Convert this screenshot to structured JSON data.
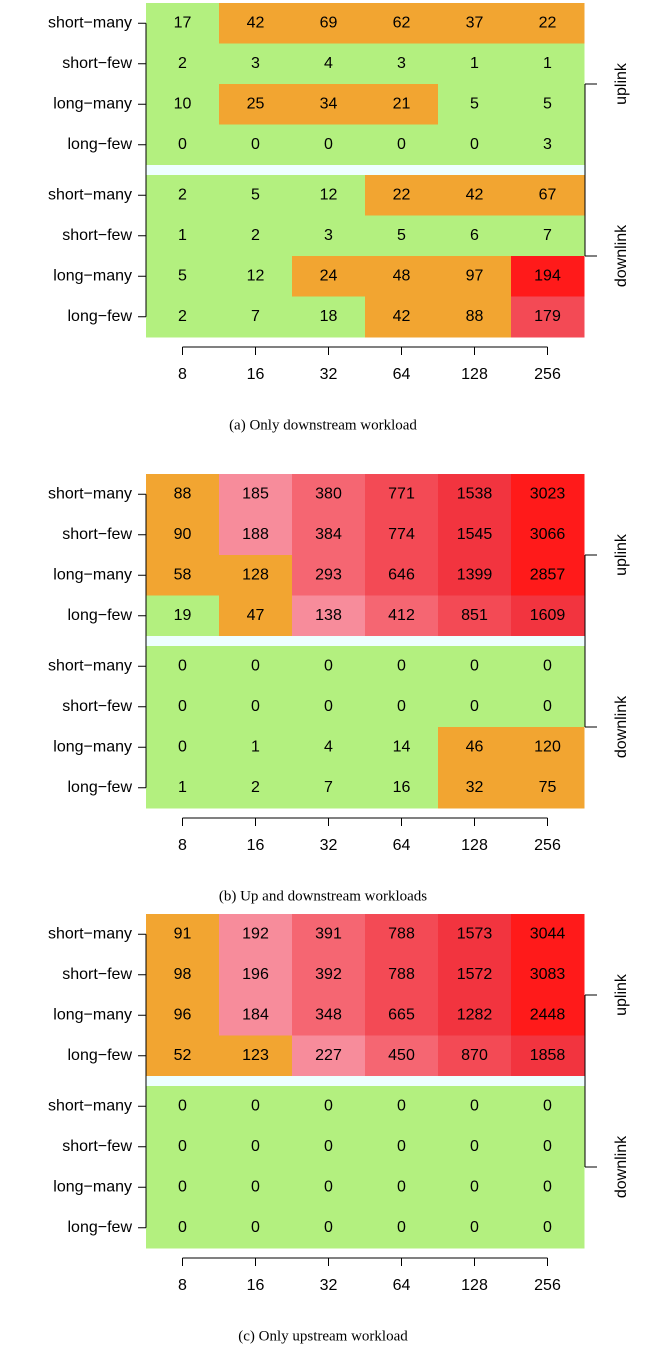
{
  "chart_data": [
    {
      "type": "heatmap",
      "caption": "(a) Only downstream workload",
      "x_categories": [
        8,
        16,
        32,
        64,
        128,
        256
      ],
      "y_categories": [
        "short−many",
        "short−few",
        "long−many",
        "long−few",
        "short−many",
        "short−few",
        "long−many",
        "long−few"
      ],
      "groups": [
        "uplink",
        "downlink"
      ],
      "values": [
        [
          17,
          42,
          69,
          62,
          37,
          22
        ],
        [
          2,
          3,
          4,
          3,
          1,
          1
        ],
        [
          10,
          25,
          34,
          21,
          5,
          5
        ],
        [
          0,
          0,
          0,
          0,
          0,
          3
        ],
        [
          2,
          5,
          12,
          22,
          42,
          67
        ],
        [
          1,
          2,
          3,
          5,
          6,
          7
        ],
        [
          5,
          12,
          24,
          48,
          97,
          194
        ],
        [
          2,
          7,
          18,
          42,
          88,
          179
        ]
      ],
      "colors": [
        [
          "#b3f07f",
          "#f2a531",
          "#f2a531",
          "#f2a531",
          "#f2a531",
          "#f2a531"
        ],
        [
          "#b3f07f",
          "#b3f07f",
          "#b3f07f",
          "#b3f07f",
          "#b3f07f",
          "#b3f07f"
        ],
        [
          "#b3f07f",
          "#f2a531",
          "#f2a531",
          "#f2a531",
          "#b3f07f",
          "#b3f07f"
        ],
        [
          "#b3f07f",
          "#b3f07f",
          "#b3f07f",
          "#b3f07f",
          "#b3f07f",
          "#b3f07f"
        ],
        [
          "#b3f07f",
          "#b3f07f",
          "#b3f07f",
          "#f2a531",
          "#f2a531",
          "#f2a531"
        ],
        [
          "#b3f07f",
          "#b3f07f",
          "#b3f07f",
          "#b3f07f",
          "#b3f07f",
          "#b3f07f"
        ],
        [
          "#b3f07f",
          "#b3f07f",
          "#f2a531",
          "#f2a531",
          "#f2a531",
          "#ff1a1a"
        ],
        [
          "#b3f07f",
          "#b3f07f",
          "#b3f07f",
          "#f2a531",
          "#f2a531",
          "#f34a55"
        ]
      ]
    },
    {
      "type": "heatmap",
      "caption": "(b) Up and downstream workloads",
      "x_categories": [
        8,
        16,
        32,
        64,
        128,
        256
      ],
      "y_categories": [
        "short−many",
        "short−few",
        "long−many",
        "long−few",
        "short−many",
        "short−few",
        "long−many",
        "long−few"
      ],
      "groups": [
        "uplink",
        "downlink"
      ],
      "values": [
        [
          88,
          185,
          380,
          771,
          1538,
          3023
        ],
        [
          90,
          188,
          384,
          774,
          1545,
          3066
        ],
        [
          58,
          128,
          293,
          646,
          1399,
          2857
        ],
        [
          19,
          47,
          138,
          412,
          851,
          1609
        ],
        [
          0,
          0,
          0,
          0,
          0,
          0
        ],
        [
          0,
          0,
          0,
          0,
          0,
          0
        ],
        [
          0,
          1,
          4,
          14,
          46,
          120
        ],
        [
          1,
          2,
          7,
          16,
          32,
          75
        ]
      ],
      "colors": [
        [
          "#f2a531",
          "#f78c9b",
          "#f56672",
          "#f34a55",
          "#f2343f",
          "#ff1a1a"
        ],
        [
          "#f2a531",
          "#f78c9b",
          "#f56672",
          "#f34a55",
          "#f2343f",
          "#ff1a1a"
        ],
        [
          "#f2a531",
          "#f2a531",
          "#f56672",
          "#f34a55",
          "#f2343f",
          "#ff1a1a"
        ],
        [
          "#b3f07f",
          "#f2a531",
          "#f78c9b",
          "#f56672",
          "#f34a55",
          "#f2343f"
        ],
        [
          "#b3f07f",
          "#b3f07f",
          "#b3f07f",
          "#b3f07f",
          "#b3f07f",
          "#b3f07f"
        ],
        [
          "#b3f07f",
          "#b3f07f",
          "#b3f07f",
          "#b3f07f",
          "#b3f07f",
          "#b3f07f"
        ],
        [
          "#b3f07f",
          "#b3f07f",
          "#b3f07f",
          "#b3f07f",
          "#f2a531",
          "#f2a531"
        ],
        [
          "#b3f07f",
          "#b3f07f",
          "#b3f07f",
          "#b3f07f",
          "#f2a531",
          "#f2a531"
        ]
      ]
    },
    {
      "type": "heatmap",
      "caption": "(c) Only upstream workload",
      "x_categories": [
        8,
        16,
        32,
        64,
        128,
        256
      ],
      "y_categories": [
        "short−many",
        "short−few",
        "long−many",
        "long−few",
        "short−many",
        "short−few",
        "long−many",
        "long−few"
      ],
      "groups": [
        "uplink",
        "downlink"
      ],
      "values": [
        [
          91,
          192,
          391,
          788,
          1573,
          3044
        ],
        [
          98,
          196,
          392,
          788,
          1572,
          3083
        ],
        [
          96,
          184,
          348,
          665,
          1282,
          2448
        ],
        [
          52,
          123,
          227,
          450,
          870,
          1858
        ],
        [
          0,
          0,
          0,
          0,
          0,
          0
        ],
        [
          0,
          0,
          0,
          0,
          0,
          0
        ],
        [
          0,
          0,
          0,
          0,
          0,
          0
        ],
        [
          0,
          0,
          0,
          0,
          0,
          0
        ]
      ],
      "colors": [
        [
          "#f2a531",
          "#f78c9b",
          "#f56672",
          "#f34a55",
          "#f2343f",
          "#ff1a1a"
        ],
        [
          "#f2a531",
          "#f78c9b",
          "#f56672",
          "#f34a55",
          "#f2343f",
          "#ff1a1a"
        ],
        [
          "#f2a531",
          "#f78c9b",
          "#f56672",
          "#f34a55",
          "#f2343f",
          "#ff1a1a"
        ],
        [
          "#f2a531",
          "#f2a531",
          "#f78c9b",
          "#f56672",
          "#f34a55",
          "#f2343f"
        ],
        [
          "#b3f07f",
          "#b3f07f",
          "#b3f07f",
          "#b3f07f",
          "#b3f07f",
          "#b3f07f"
        ],
        [
          "#b3f07f",
          "#b3f07f",
          "#b3f07f",
          "#b3f07f",
          "#b3f07f",
          "#b3f07f"
        ],
        [
          "#b3f07f",
          "#b3f07f",
          "#b3f07f",
          "#b3f07f",
          "#b3f07f",
          "#b3f07f"
        ],
        [
          "#b3f07f",
          "#b3f07f",
          "#b3f07f",
          "#b3f07f",
          "#b3f07f",
          "#b3f07f"
        ]
      ]
    }
  ]
}
